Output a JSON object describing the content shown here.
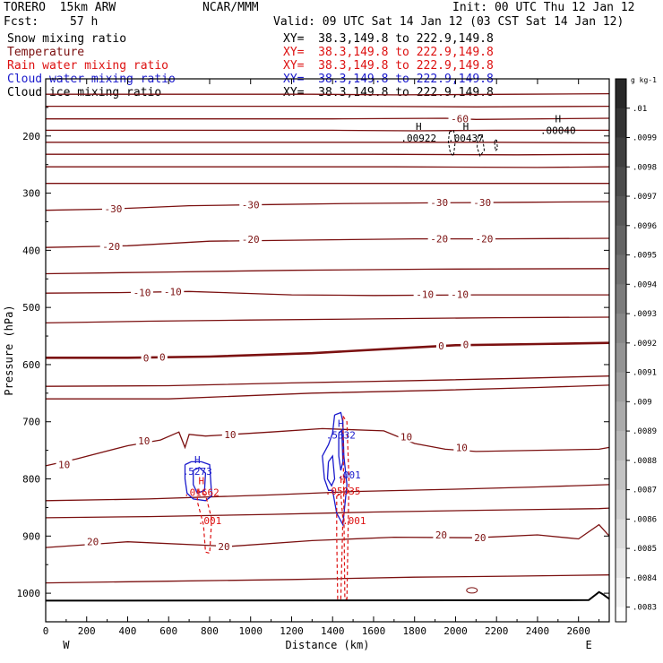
{
  "header": {
    "model": "TORERO  15km ARW",
    "center": "NCAR/MMM",
    "init": "Init: 00 UTC Thu 12 Jan 12",
    "fcst_label": "Fcst:",
    "fcst_value": "57 h",
    "valid": "Valid: 09 UTC Sat 14 Jan 12 (03 CST Sat 14 Jan 12)"
  },
  "colors": {
    "temperature": "#7b1010",
    "rain": "#dd1111",
    "cloud_water": "#1a1acc",
    "ink": "#000000",
    "grid": "#888888"
  },
  "chart_data": {
    "type": "line",
    "title": "",
    "xlabel": "Distance (km)",
    "ylabel": "Pressure (hPa)",
    "xlim": [
      0,
      2750
    ],
    "ylim": [
      1050,
      100
    ],
    "y_scale": "linear, inverted",
    "x_ticks": [
      "0",
      "200",
      "400",
      "600",
      "800",
      "1000",
      "1200",
      "1400",
      "1600",
      "1800",
      "2000",
      "2200",
      "2400",
      "2600"
    ],
    "y_ticks": [
      "200",
      "300",
      "400",
      "500",
      "600",
      "700",
      "800",
      "900",
      "1000"
    ],
    "x_end_labels": {
      "left": "W",
      "right": "E"
    },
    "legend": [
      {
        "name": "Snow mixing ratio",
        "xy": "XY=  38.3,149.8 to 222.9,149.8",
        "color": "#000000"
      },
      {
        "name": "Temperature",
        "xy": "XY=  38.3,149.8 to 222.9,149.8",
        "color": "#7b1010"
      },
      {
        "name": "Rain water mixing ratio",
        "xy": "XY=  38.3,149.8 to 222.9,149.8",
        "color": "#dd1111"
      },
      {
        "name": "Cloud water mixing ratio",
        "xy": "XY=  38.3,149.8 to 222.9,149.8",
        "color": "#1a1acc"
      },
      {
        "name": "Cloud ice mixing ratio",
        "xy": "XY=  38.3,149.8 to 222.9,149.8",
        "color": "#000000"
      }
    ],
    "isotherm_labels": [
      {
        "text": "-60",
        "x": 2020,
        "p": 170
      },
      {
        "text": "-30",
        "x": 330,
        "p": 327
      },
      {
        "text": "-30",
        "x": 1000,
        "p": 320
      },
      {
        "text": "-30",
        "x": 1920,
        "p": 316
      },
      {
        "text": "-30",
        "x": 2130,
        "p": 316
      },
      {
        "text": "-20",
        "x": 320,
        "p": 393
      },
      {
        "text": "-20",
        "x": 1000,
        "p": 381
      },
      {
        "text": "-20",
        "x": 1920,
        "p": 380
      },
      {
        "text": "-20",
        "x": 2140,
        "p": 380
      },
      {
        "text": "-10",
        "x": 470,
        "p": 474
      },
      {
        "text": "-10",
        "x": 620,
        "p": 472
      },
      {
        "text": "-10",
        "x": 1850,
        "p": 477
      },
      {
        "text": "-10",
        "x": 2020,
        "p": 477
      },
      {
        "text": "0",
        "x": 490,
        "p": 588
      },
      {
        "text": "0",
        "x": 570,
        "p": 587
      },
      {
        "text": "0",
        "x": 1930,
        "p": 567
      },
      {
        "text": "0",
        "x": 2050,
        "p": 565
      },
      {
        "text": "10",
        "x": 480,
        "p": 733
      },
      {
        "text": "10",
        "x": 90,
        "p": 775
      },
      {
        "text": "10",
        "x": 900,
        "p": 722
      },
      {
        "text": "10",
        "x": 1760,
        "p": 726
      },
      {
        "text": "10",
        "x": 2030,
        "p": 745
      },
      {
        "text": "20",
        "x": 230,
        "p": 910
      },
      {
        "text": "20",
        "x": 870,
        "p": 918
      },
      {
        "text": "20",
        "x": 1930,
        "p": 898
      },
      {
        "text": "20",
        "x": 2120,
        "p": 903
      }
    ],
    "extrema_labels": [
      {
        "mark": "H",
        "value": ".00922",
        "x": 1820,
        "p": 205,
        "color": "#000000"
      },
      {
        "mark": "H",
        "value": ".00437",
        "x": 2050,
        "p": 205,
        "color": "#000000"
      },
      {
        "mark": "H",
        "value": ".00040",
        "x": 2500,
        "p": 192,
        "color": "#000000"
      },
      {
        "mark": "H",
        "value": ".5273",
        "x": 740,
        "p": 788,
        "color": "#1a1acc"
      },
      {
        "mark": "H",
        "value": ".01662",
        "x": 760,
        "p": 825,
        "color": "#dd1111"
      },
      {
        "mark": "H",
        "value": ".5332",
        "x": 1440,
        "p": 725,
        "color": "#1a1acc"
      },
      {
        "mark": "H",
        "value": ".05035",
        "x": 1450,
        "p": 823,
        "color": "#dd1111"
      }
    ],
    "contour_value_labels": [
      {
        "text": ".001",
        "x": 800,
        "p": 873,
        "color": "#dd1111"
      },
      {
        "text": ".001",
        "x": 1505,
        "p": 873,
        "color": "#dd1111"
      },
      {
        "text": ".001",
        "x": 1480,
        "p": 793,
        "color": "#1a1acc"
      }
    ],
    "colorbar": {
      "unit": "g kg-1",
      "ticks": [
        ".01",
        ".0099",
        ".0098",
        ".0097",
        ".0096",
        ".0095",
        ".0094",
        ".0093",
        ".0092",
        ".0091",
        ".009",
        ".0089",
        ".0088",
        ".0087",
        ".0086",
        ".0085",
        ".0084",
        ".0083"
      ]
    }
  }
}
